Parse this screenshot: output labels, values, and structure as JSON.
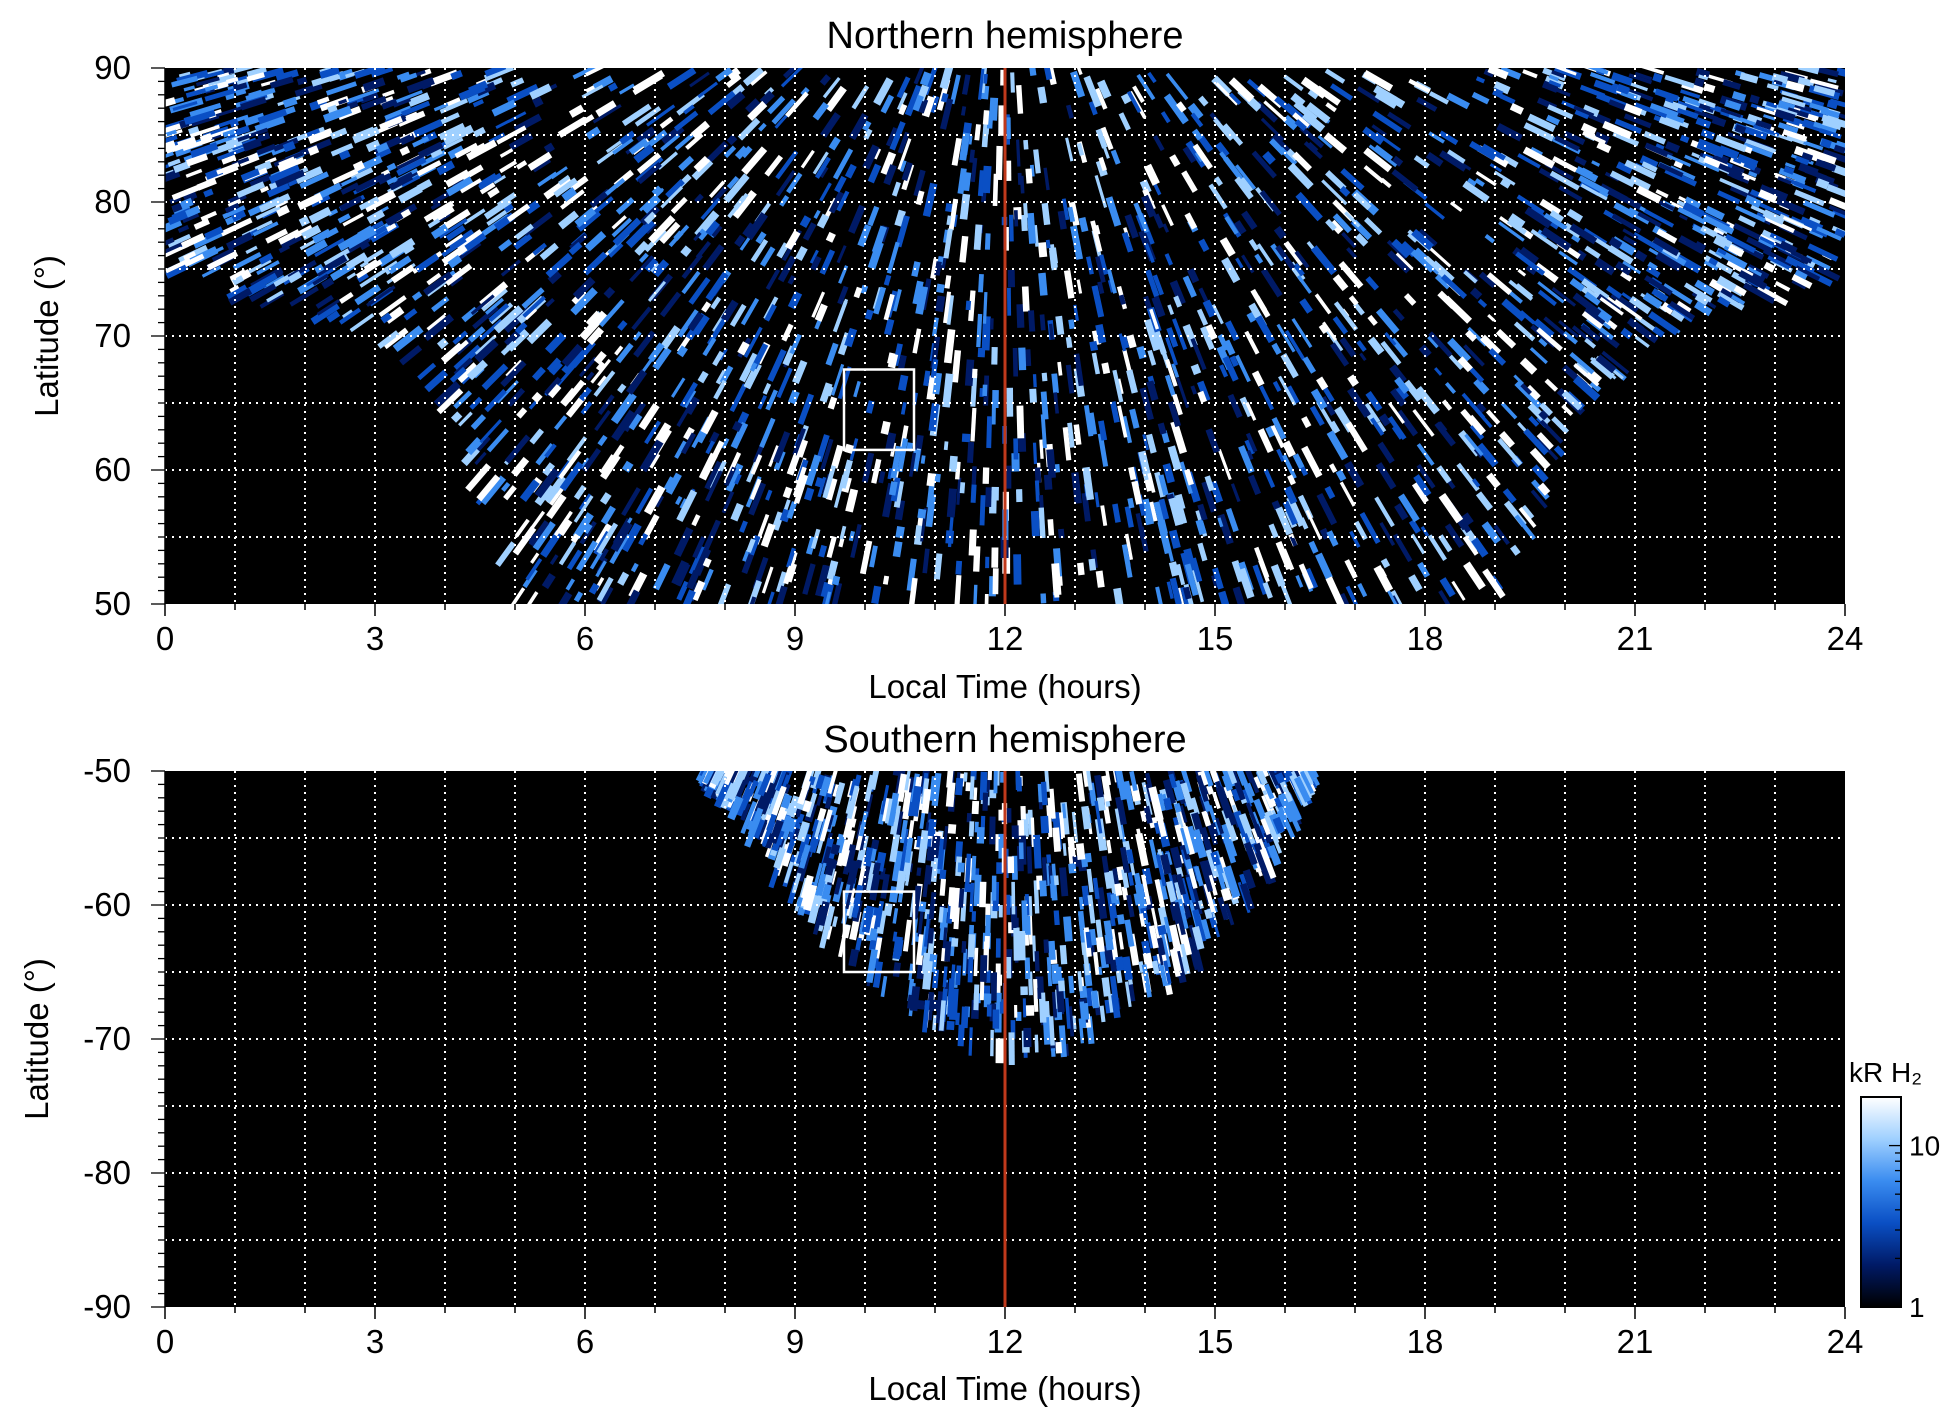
{
  "chart_data": [
    {
      "type": "heatmap",
      "title": "Northern hemisphere",
      "xlabel": "Local Time (hours)",
      "ylabel": "Latitude (°)",
      "xlim": [
        0,
        24
      ],
      "ylim": [
        50,
        90
      ],
      "xticks": [
        "0",
        "3",
        "6",
        "9",
        "12",
        "15",
        "18",
        "21",
        "24"
      ],
      "yticks": [
        "50",
        "60",
        "70",
        "80",
        "90"
      ],
      "grid": true,
      "reference_line": {
        "x": 12,
        "color": "#c0391b"
      },
      "highlight_box": {
        "x": [
          9.7,
          10.7
        ],
        "y": [
          61.5,
          67.5
        ],
        "color": "#ffffff"
      },
      "coverage_region": {
        "description_free": true,
        "boundary_lat_by_lt": [
          [
            0,
            75
          ],
          [
            1,
            73
          ],
          [
            2,
            72
          ],
          [
            3,
            70.5
          ],
          [
            4,
            66
          ],
          [
            5,
            50
          ],
          [
            19,
            50
          ],
          [
            20,
            62
          ],
          [
            21,
            69
          ],
          [
            22,
            72
          ],
          [
            23,
            73
          ],
          [
            24,
            75
          ]
        ]
      }
    },
    {
      "type": "heatmap",
      "title": "Southern hemisphere",
      "xlabel": "Local Time (hours)",
      "ylabel": "Latitude (°)",
      "xlim": [
        0,
        24
      ],
      "ylim": [
        -90,
        -50
      ],
      "xticks": [
        "0",
        "3",
        "6",
        "9",
        "12",
        "15",
        "18",
        "21",
        "24"
      ],
      "yticks": [
        "-50",
        "-60",
        "-70",
        "-80",
        "-90"
      ],
      "grid": true,
      "reference_line": {
        "x": 12,
        "color": "#c0391b"
      },
      "highlight_box": {
        "x": [
          9.7,
          10.7
        ],
        "y": [
          -65,
          -59
        ],
        "color": "#ffffff"
      },
      "coverage_region": {
        "boundary_lat_by_lt": [
          [
            7.7,
            -50
          ],
          [
            8.3,
            -54
          ],
          [
            9,
            -60
          ],
          [
            10,
            -65
          ],
          [
            11,
            -69
          ],
          [
            12,
            -71.5
          ],
          [
            13,
            -71
          ],
          [
            14,
            -67
          ],
          [
            15,
            -63
          ],
          [
            15.8,
            -57
          ],
          [
            16.4,
            -50
          ]
        ]
      }
    }
  ],
  "colorbar": {
    "label": "kR H₂",
    "ticks": [
      "1",
      "10"
    ],
    "scale": "log",
    "range": [
      1,
      20
    ],
    "colors": [
      "#000000",
      "#001a66",
      "#0a4fc4",
      "#3a8cf0",
      "#9fd0ff",
      "#ffffff"
    ]
  }
}
